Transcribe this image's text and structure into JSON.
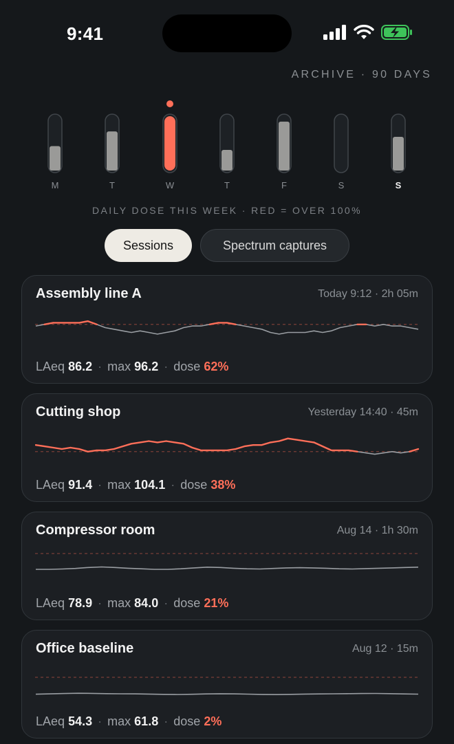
{
  "status": {
    "time": "9:41"
  },
  "archive_label": "ARCHIVE · 90 DAYS",
  "week": {
    "days": [
      "M",
      "T",
      "W",
      "T",
      "F",
      "S",
      "S"
    ],
    "dose_fraction": [
      0.45,
      0.72,
      1.0,
      0.38,
      0.9,
      0.0,
      0.62
    ],
    "over_limit": [
      false,
      false,
      true,
      false,
      false,
      false,
      false
    ],
    "today_index": 6,
    "caption": "DAILY DOSE THIS WEEK · RED = OVER 100%"
  },
  "tabs": [
    {
      "label": "Sessions",
      "active": true
    },
    {
      "label": "Spectrum captures",
      "active": false
    }
  ],
  "colors": {
    "accent": "#ff6f59",
    "trace": "#9a9ea3",
    "limit_line": "#7a3f37"
  },
  "sessions": [
    {
      "title": "Assembly line A",
      "meta": "Today 9:12 · 2h 05m",
      "laeq_label": "LAeq",
      "laeq": "86.2",
      "max_label": "max",
      "max": "96.2",
      "dose_label": "dose",
      "dose": "62%",
      "trace": [
        84,
        85,
        86,
        86,
        86,
        86,
        87,
        85,
        83,
        82,
        81,
        80,
        81,
        80,
        79,
        80,
        81,
        83,
        84,
        84,
        85,
        86,
        86,
        85,
        84,
        83,
        82,
        80,
        79,
        80,
        80,
        80,
        81,
        80,
        81,
        83,
        84,
        85,
        85,
        84,
        85,
        84,
        84,
        83,
        82
      ]
    },
    {
      "title": "Cutting shop",
      "meta": "Yesterday 14:40 · 45m",
      "laeq_label": "LAeq",
      "laeq": "91.4",
      "max_label": "max",
      "max": "104.1",
      "dose_label": "dose",
      "dose": "38%",
      "trace": [
        90,
        89,
        88,
        87,
        88,
        87,
        85,
        86,
        86,
        87,
        89,
        91,
        92,
        93,
        92,
        93,
        92,
        91,
        88,
        86,
        86,
        86,
        86,
        87,
        89,
        90,
        90,
        92,
        93,
        95,
        94,
        93,
        92,
        89,
        86,
        86,
        86,
        85,
        84,
        83,
        84,
        85,
        84,
        85,
        87
      ]
    },
    {
      "title": "Compressor room",
      "meta": "Aug 14 · 1h 30m",
      "laeq_label": "LAeq",
      "laeq": "78.9",
      "max_label": "max",
      "max": "84.0",
      "dose_label": "dose",
      "dose": "21%",
      "trace": [
        79,
        79,
        79.2,
        79.5,
        80,
        80.3,
        80,
        79.6,
        79.3,
        79,
        79,
        79.3,
        79.8,
        80.2,
        80,
        79.6,
        79.3,
        79.2,
        79.5,
        79.8,
        79.9,
        79.8,
        79.6,
        79.3,
        79.2,
        79.4,
        79.6,
        79.8,
        80,
        80.2
      ]
    },
    {
      "title": "Office baseline",
      "meta": "Aug 12 · 15m",
      "laeq_label": "LAeq",
      "laeq": "54.3",
      "max_label": "max",
      "max": "61.8",
      "dose_label": "dose",
      "dose": "2%",
      "trace": [
        54,
        54.5,
        55,
        55.4,
        55.2,
        54.8,
        54.6,
        54.5,
        54.2,
        53.8,
        53.6,
        53.9,
        54.4,
        54.7,
        54.5,
        54.1,
        53.7,
        53.5,
        53.8,
        54.2,
        54.4,
        54.6,
        54.8,
        55,
        55.1,
        54.8,
        54.4,
        54.1
      ]
    }
  ]
}
